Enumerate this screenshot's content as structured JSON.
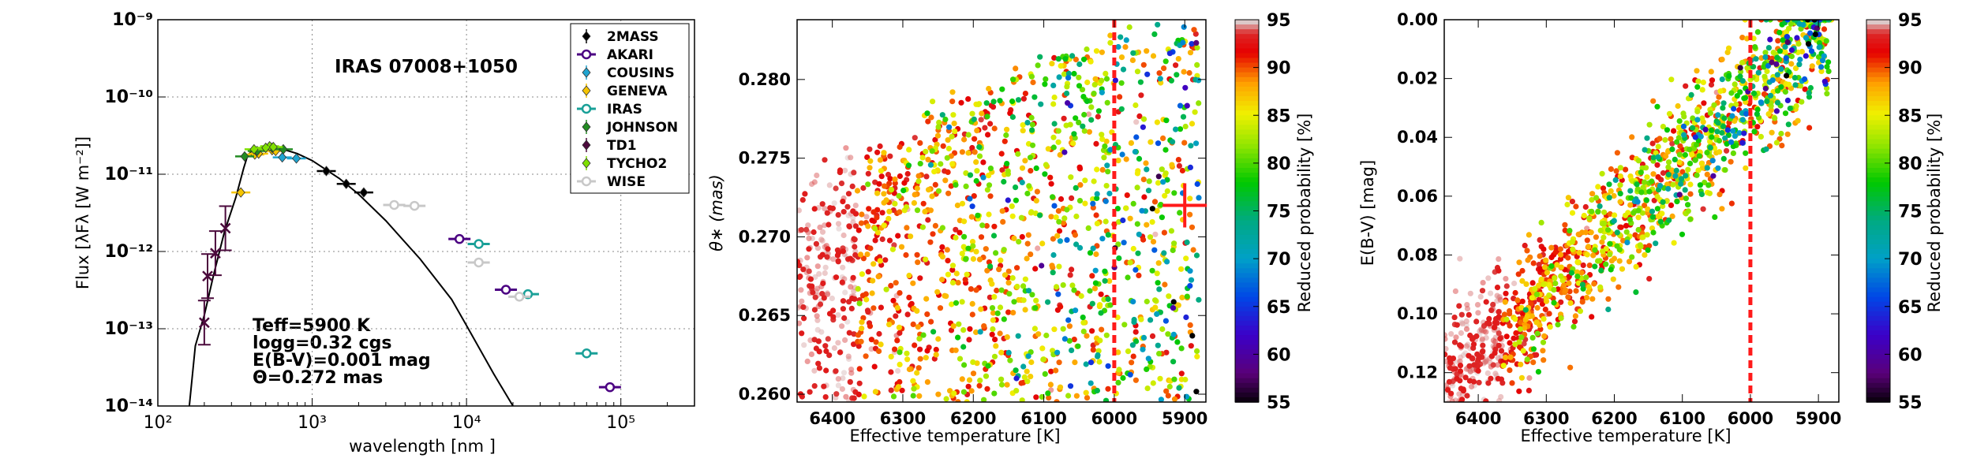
{
  "chart_data": [
    {
      "type": "scatter",
      "title": "IRAS 07008+1050",
      "xlabel": "wavelength [nm ]",
      "ylabel": "Flux [λFλ [W  m⁻²]]",
      "x_scale": "log",
      "y_scale": "log",
      "xlim": [
        100,
        300000
      ],
      "ylim": [
        1e-14,
        1e-09
      ],
      "x_tick_labels": [
        "10²",
        "10³",
        "10⁴",
        "10⁵"
      ],
      "y_tick_labels": [
        "10⁻¹⁴",
        "10⁻¹³",
        "10⁻¹²",
        "10⁻¹¹",
        "10⁻¹⁰",
        "10⁻⁹"
      ],
      "grid": true,
      "legend_position": "top-right",
      "annotations": [
        "Teff=5900 K",
        "logg=0.32 cgs",
        "E(B-V)=0.001 mag",
        "Θ=0.272 mas"
      ],
      "series": [
        {
          "name": "2MASS",
          "color": "#000000",
          "marker": "diamond-filled",
          "points": [
            [
              1235,
              1.1e-11
            ],
            [
              1662,
              7.5e-12
            ],
            [
              2159,
              5.8e-12
            ]
          ]
        },
        {
          "name": "AKARI",
          "color": "#4b0082",
          "marker": "circle-open",
          "points": [
            [
              9000,
              1.45e-12
            ],
            [
              18000,
              3.2e-13
            ],
            [
              85000,
              1.75e-14
            ]
          ]
        },
        {
          "name": "COUSINS",
          "color": "#1fa4d0",
          "marker": "diamond-filled",
          "points": [
            [
              640,
              1.65e-11
            ],
            [
              790,
              1.6e-11
            ]
          ]
        },
        {
          "name": "GENEVA",
          "color": "#f5c400",
          "marker": "diamond-filled",
          "points": [
            [
              345,
              5.8e-12
            ],
            [
              425,
              1.8e-11
            ],
            [
              450,
              1.85e-11
            ],
            [
              550,
              2.05e-11
            ],
            [
              580,
              2e-11
            ]
          ]
        },
        {
          "name": "IRAS",
          "color": "#1aa098",
          "marker": "circle-open",
          "points": [
            [
              12000,
              1.25e-12
            ],
            [
              25000,
              2.8e-13
            ],
            [
              60000,
              4.8e-14
            ]
          ]
        },
        {
          "name": "JOHNSON",
          "color": "#228b22",
          "marker": "diamond-filled",
          "points": [
            [
              365,
              1.7e-11
            ],
            [
              440,
              2e-11
            ],
            [
              550,
              2.2e-11
            ],
            [
              650,
              2.1e-11
            ]
          ]
        },
        {
          "name": "TD1",
          "color": "#4b0a3c",
          "marker": "x-and-diamond",
          "points": [
            [
              200,
              1.2e-13
            ],
            [
              210,
              4.8e-13
            ],
            [
              236,
              9.5e-13
            ],
            [
              274,
              2e-12
            ]
          ]
        },
        {
          "name": "TYCHO2",
          "color": "#7fe000",
          "marker": "diamond-filled",
          "points": [
            [
              420,
              2.1e-11
            ],
            [
              530,
              2.3e-11
            ],
            [
              500,
              2.2e-11
            ],
            [
              560,
              2.25e-11
            ]
          ]
        },
        {
          "name": "WISE",
          "color": "#c8c8c8",
          "marker": "circle-open",
          "points": [
            [
              3400,
              4e-12
            ],
            [
              4600,
              3.9e-12
            ],
            [
              12000,
              7.2e-13
            ],
            [
              22000,
              2.6e-13
            ]
          ]
        }
      ],
      "model_curve": [
        [
          160,
          1e-14
        ],
        [
          175,
          6e-14
        ],
        [
          200,
          1.5e-13
        ],
        [
          230,
          5e-13
        ],
        [
          270,
          1.8e-12
        ],
        [
          320,
          5e-12
        ],
        [
          360,
          1.2e-11
        ],
        [
          380,
          1.7e-11
        ],
        [
          400,
          1.95e-11
        ],
        [
          500,
          2.25e-11
        ],
        [
          600,
          2.2e-11
        ],
        [
          800,
          1.85e-11
        ],
        [
          1000,
          1.5e-11
        ],
        [
          1500,
          8.8e-12
        ],
        [
          2000,
          5.5e-12
        ],
        [
          3000,
          2.5e-12
        ],
        [
          5000,
          8e-13
        ],
        [
          8000,
          2.4e-13
        ],
        [
          10000,
          1.1e-13
        ],
        [
          15000,
          2.6e-14
        ],
        [
          20000,
          1e-14
        ]
      ]
    },
    {
      "type": "scatter",
      "xlabel": "Effective temperature [K]",
      "ylabel": "θ∗ (mas)",
      "x_reversed": true,
      "xlim": [
        6450,
        5870
      ],
      "ylim": [
        0.2595,
        0.2838
      ],
      "x_ticks": [
        6400,
        6300,
        6200,
        6100,
        6000,
        5900
      ],
      "y_ticks": [
        0.26,
        0.265,
        0.27,
        0.275,
        0.28
      ],
      "colorbar": {
        "label": "Reduced probability [%]",
        "min": 55,
        "max": 95,
        "ticks": [
          55,
          60,
          65,
          70,
          75,
          80,
          85,
          90,
          95
        ]
      },
      "reference_line_x": 6000,
      "best_fit_marker": [
        5900,
        0.272
      ],
      "point_count": 1500
    },
    {
      "type": "scatter",
      "xlabel": "Effective temperature [K]",
      "ylabel": "E(B-V) [mag]",
      "x_reversed": true,
      "y_reversed": true,
      "xlim": [
        6450,
        5870
      ],
      "ylim": [
        0.13,
        0.0
      ],
      "x_ticks": [
        6400,
        6300,
        6200,
        6100,
        6000,
        5900
      ],
      "y_ticks": [
        0.0,
        0.02,
        0.04,
        0.06,
        0.08,
        0.1,
        0.12
      ],
      "colorbar": {
        "label": "Reduced probability [%]",
        "min": 55,
        "max": 95,
        "ticks": [
          55,
          60,
          65,
          70,
          75,
          80,
          85,
          90,
          95
        ]
      },
      "reference_line_x": 6000,
      "point_count": 1500
    }
  ]
}
